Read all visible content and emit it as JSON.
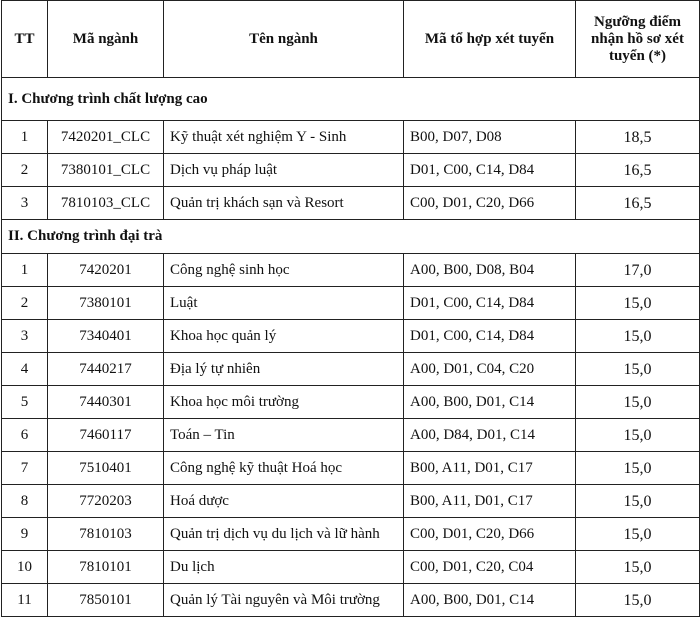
{
  "table": {
    "header": [
      "TT",
      "Mã ngành",
      "Tên ngành",
      "Mã tổ hợp xét tuyển",
      "Ngưỡng điểm nhận hồ sơ xét tuyển (*)"
    ],
    "sections": [
      {
        "title": "I. Chương trình chất lượng cao",
        "rows": [
          [
            "1",
            "7420201_CLC",
            "Kỹ thuật xét nghiệm Y - Sinh",
            "B00, D07, D08",
            "18,5"
          ],
          [
            "2",
            "7380101_CLC",
            "Dịch vụ pháp luật",
            "D01, C00, C14, D84",
            "16,5"
          ],
          [
            "3",
            "7810103_CLC",
            "Quản trị khách sạn và Resort",
            "C00, D01, C20, D66",
            "16,5"
          ]
        ]
      },
      {
        "title": "II. Chương trình đại trà",
        "rows": [
          [
            "1",
            "7420201",
            "Công nghệ sinh học",
            "A00, B00, D08, B04",
            "17,0"
          ],
          [
            "2",
            "7380101",
            "Luật",
            "D01, C00, C14, D84",
            "15,0"
          ],
          [
            "3",
            "7340401",
            "Khoa học quản lý",
            "D01, C00, C14, D84",
            "15,0"
          ],
          [
            "4",
            "7440217",
            "Địa lý tự nhiên",
            "A00, D01, C04, C20",
            "15,0"
          ],
          [
            "5",
            "7440301",
            "Khoa học môi trường",
            "A00, B00, D01, C14",
            "15,0"
          ],
          [
            "6",
            "7460117",
            "Toán – Tin",
            "A00, D84, D01, C14",
            "15,0"
          ],
          [
            "7",
            "7510401",
            "Công nghệ kỹ thuật Hoá học",
            "B00, A11, D01, C17",
            "15,0"
          ],
          [
            "8",
            "7720203",
            "Hoá dược",
            "B00, A11, D01, C17",
            "15,0"
          ],
          [
            "9",
            "7810103",
            "Quản trị dịch vụ du lịch và lữ hành",
            "C00, D01, C20, D66",
            "15,0"
          ],
          [
            "10",
            "7810101",
            "Du lịch",
            "C00, D01, C20, C04",
            "15,0"
          ],
          [
            "11",
            "7850101",
            "Quản lý Tài nguyên và Môi trường",
            "A00, B00, D01, C14",
            "15,0"
          ]
        ]
      }
    ]
  }
}
